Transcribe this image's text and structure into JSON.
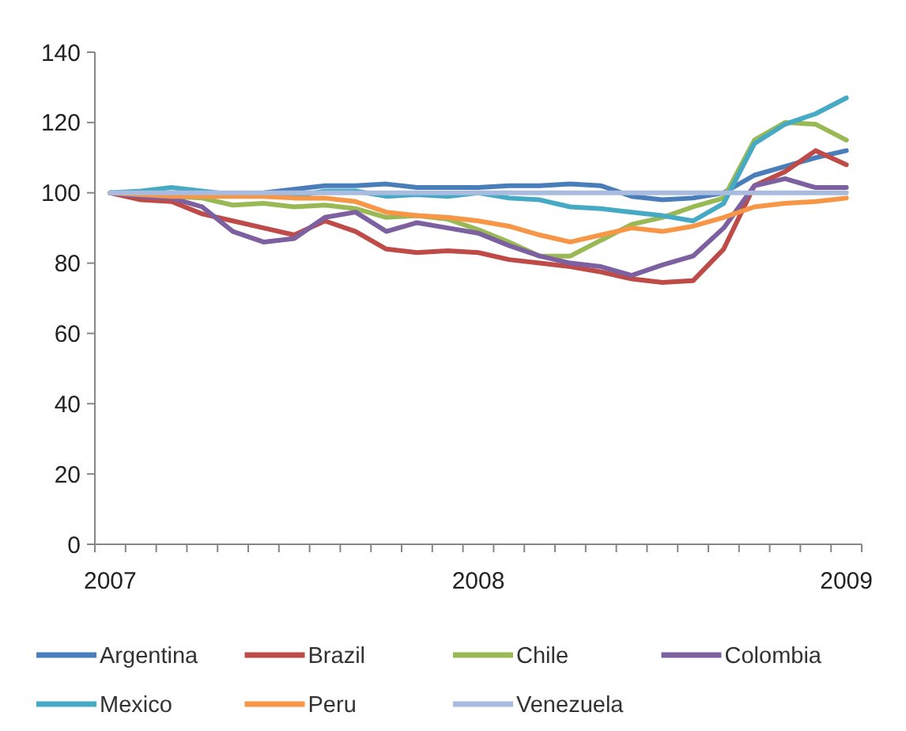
{
  "chart_data": {
    "type": "line",
    "categories": [
      "2007",
      null,
      null,
      null,
      null,
      null,
      null,
      null,
      null,
      null,
      null,
      null,
      "2008",
      null,
      null,
      null,
      null,
      null,
      null,
      null,
      null,
      null,
      null,
      null,
      "2009"
    ],
    "ylim": [
      0,
      140
    ],
    "yticks": [
      0,
      20,
      40,
      60,
      80,
      100,
      120,
      140
    ],
    "grid": false,
    "legend": "bottom",
    "marker": "none",
    "line_style": "solid",
    "series": [
      {
        "name": "Argentina",
        "color": "#4a7ebb",
        "values": [
          100,
          100,
          99,
          99.5,
          99.5,
          100,
          101,
          102,
          102,
          102.5,
          101.5,
          101.5,
          101.5,
          102,
          102,
          102.5,
          102,
          99,
          98,
          98.5,
          100,
          105,
          107.5,
          110,
          112
        ]
      },
      {
        "name": "Brazil",
        "color": "#be4b48",
        "values": [
          100,
          98,
          97.5,
          94,
          92,
          90,
          88,
          92,
          89,
          84,
          83,
          83.5,
          83,
          81,
          80,
          79,
          77.5,
          75.5,
          74.5,
          75,
          84,
          102,
          106,
          112,
          108
        ]
      },
      {
        "name": "Chile",
        "color": "#98b954",
        "values": [
          100,
          99.5,
          99,
          98.5,
          96.5,
          97,
          96,
          96.5,
          95.5,
          93,
          93.5,
          92.5,
          89.5,
          86,
          82,
          82,
          86.5,
          91,
          93,
          96,
          98.5,
          115,
          120,
          119.5,
          115
        ]
      },
      {
        "name": "Colombia",
        "color": "#7d60a0",
        "values": [
          100,
          99,
          98.5,
          96,
          89,
          86,
          87,
          93,
          94.5,
          89,
          91.5,
          90,
          88.5,
          85,
          82,
          80,
          79,
          76.5,
          79.5,
          82,
          90,
          102,
          104,
          101.5,
          101.5
        ]
      },
      {
        "name": "Mexico",
        "color": "#46aac5",
        "values": [
          100,
          100.5,
          101.5,
          100.5,
          99.5,
          99.5,
          99,
          100.5,
          100.5,
          99,
          99.5,
          99,
          100,
          98.5,
          98,
          96,
          95.5,
          94.5,
          93.5,
          92,
          97,
          114,
          119.5,
          122.5,
          127
        ]
      },
      {
        "name": "Peru",
        "color": "#f79646",
        "values": [
          100,
          99.5,
          99,
          99,
          99,
          99,
          98.5,
          98.5,
          97.5,
          94.5,
          93.5,
          93,
          92,
          90.5,
          88,
          86,
          88,
          90,
          89,
          90.5,
          93,
          96,
          97,
          97.5,
          98.5
        ]
      },
      {
        "name": "Venezuela",
        "color": "#a9bce0",
        "values": [
          100,
          100,
          100,
          100,
          100,
          100,
          100,
          100,
          100,
          100,
          100,
          100,
          100,
          100,
          100,
          100,
          100,
          100,
          100,
          100,
          100,
          100,
          100,
          100,
          100
        ]
      }
    ]
  }
}
